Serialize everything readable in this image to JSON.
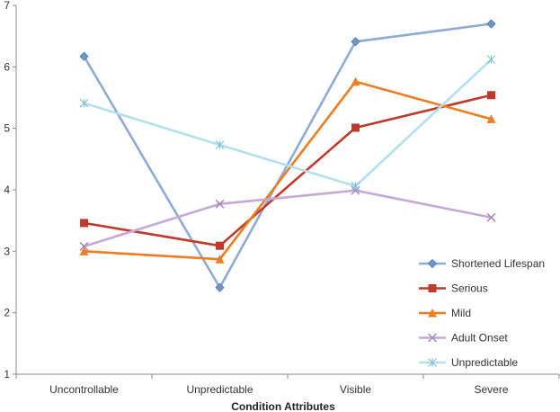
{
  "chart_data": {
    "type": "line",
    "title": "",
    "xlabel": "Condition Attributes",
    "ylabel": "",
    "categories": [
      "Uncontrollable",
      "Unpredictable",
      "Visible",
      "Severe"
    ],
    "ylim": [
      1,
      7
    ],
    "yticks": [
      "1",
      "2",
      "3",
      "4",
      "5",
      "6",
      "7"
    ],
    "grid": false,
    "legend_position": "bottom-right",
    "series": [
      {
        "name": "Shortened Lifespan",
        "values": [
          6.17,
          2.41,
          6.41,
          6.7
        ],
        "color": "#8eabd8",
        "marker": "diamond",
        "marker_color": "#6f95c9"
      },
      {
        "name": "Serious",
        "values": [
          3.46,
          3.09,
          5.01,
          5.54
        ],
        "color": "#c0392b",
        "marker": "square",
        "marker_color": "#c0392b"
      },
      {
        "name": "Mild",
        "values": [
          3.0,
          2.87,
          5.76,
          5.15
        ],
        "color": "#ec7d20",
        "marker": "triangle",
        "marker_color": "#ec7d20"
      },
      {
        "name": "Adult Onset",
        "values": [
          3.08,
          3.77,
          3.99,
          3.55
        ],
        "color": "#c6a8d6",
        "marker": "x",
        "marker_color": "#a67fc0"
      },
      {
        "name": "Unpredictable",
        "values": [
          5.41,
          4.73,
          4.06,
          6.12
        ],
        "color": "#b4dff0",
        "marker": "star",
        "marker_color": "#7fc4e2"
      }
    ]
  }
}
